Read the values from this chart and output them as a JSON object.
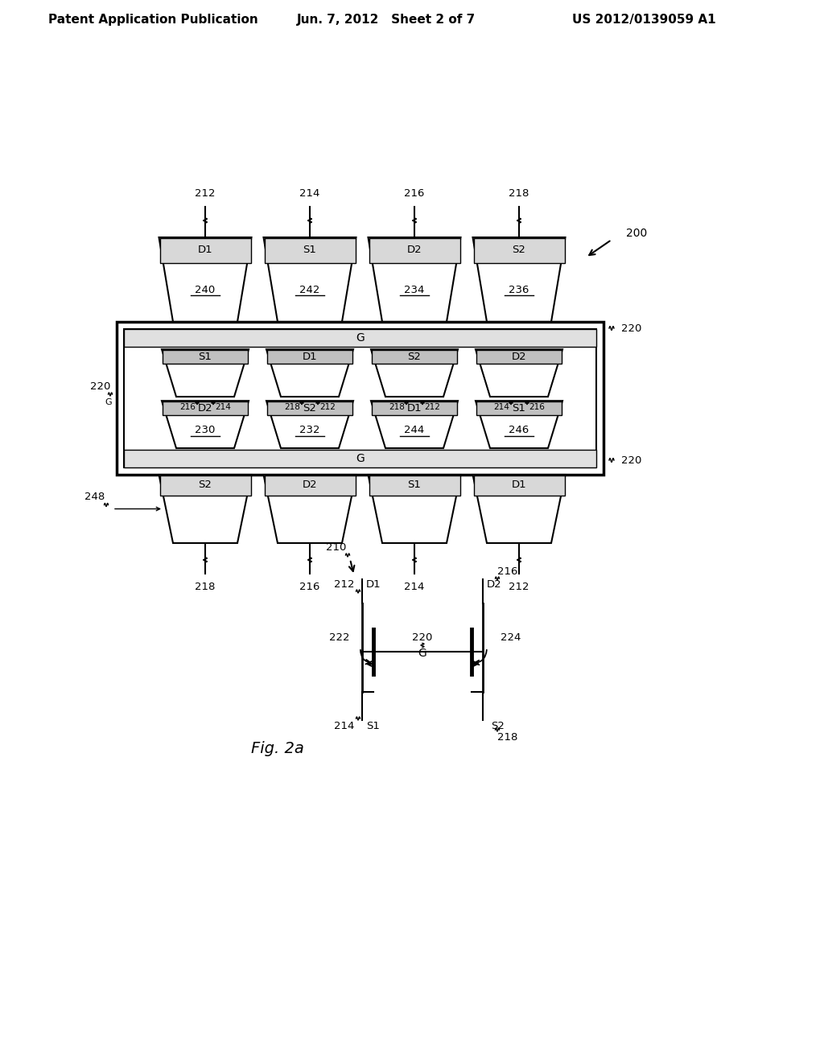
{
  "bg_color": "#ffffff",
  "header_left": "Patent Application Publication",
  "header_mid": "Jun. 7, 2012   Sheet 2 of 7",
  "header_right": "US 2012/0139059 A1",
  "fig_label": "Fig. 2a"
}
